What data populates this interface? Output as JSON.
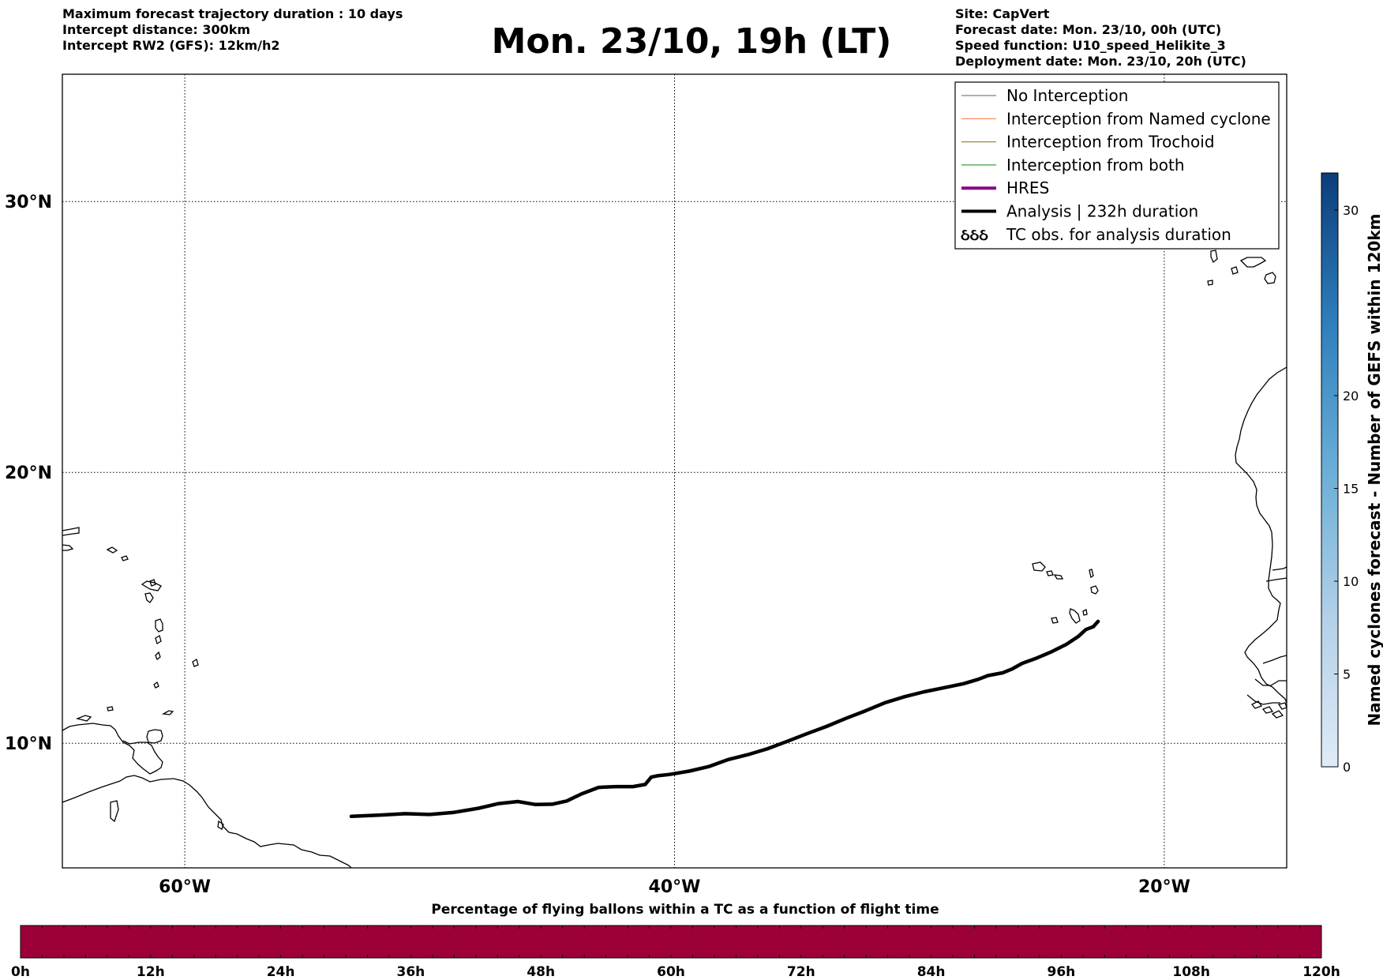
{
  "header": {
    "left_lines": [
      "Maximum forecast trajectory duration : 10 days",
      "Intercept distance: 300km",
      "Intercept RW2 (GFS):  12km/h2"
    ],
    "title": "Mon. 23/10, 19h (LT)",
    "right_lines": [
      "Site: CapVert",
      "Forecast date: Mon. 23/10, 00h (UTC)",
      "Speed function: U10_speed_Helikite_3",
      "Deployment date: Mon. 23/10, 20h (UTC)"
    ]
  },
  "map": {
    "lon_range": [
      -65,
      -15
    ],
    "lat_range": [
      5.4,
      34.7
    ],
    "lon_ticks": [
      {
        "value": -60,
        "label": "60°W"
      },
      {
        "value": -40,
        "label": "40°W"
      },
      {
        "value": -20,
        "label": "20°W"
      }
    ],
    "lat_ticks": [
      {
        "value": 10,
        "label": "10°N"
      },
      {
        "value": 20,
        "label": "20°N"
      },
      {
        "value": 30,
        "label": "30°N"
      }
    ],
    "grid": true,
    "analysis_track": {
      "color": "#000000",
      "points": [
        [
          -53.2,
          7.3
        ],
        [
          -52.0,
          7.35
        ],
        [
          -51.0,
          7.4
        ],
        [
          -50.0,
          7.37
        ],
        [
          -49.0,
          7.45
        ],
        [
          -48.0,
          7.6
        ],
        [
          -47.2,
          7.77
        ],
        [
          -46.4,
          7.85
        ],
        [
          -45.7,
          7.74
        ],
        [
          -45.0,
          7.75
        ],
        [
          -44.4,
          7.87
        ],
        [
          -43.8,
          8.13
        ],
        [
          -43.1,
          8.37
        ],
        [
          -42.4,
          8.4
        ],
        [
          -41.7,
          8.4
        ],
        [
          -41.2,
          8.48
        ],
        [
          -40.95,
          8.75
        ],
        [
          -40.7,
          8.8
        ],
        [
          -40.2,
          8.85
        ],
        [
          -39.4,
          8.97
        ],
        [
          -38.6,
          9.14
        ],
        [
          -37.8,
          9.4
        ],
        [
          -37.0,
          9.58
        ],
        [
          -36.2,
          9.8
        ],
        [
          -35.4,
          10.07
        ],
        [
          -34.6,
          10.35
        ],
        [
          -33.8,
          10.62
        ],
        [
          -33.0,
          10.92
        ],
        [
          -32.2,
          11.2
        ],
        [
          -31.4,
          11.5
        ],
        [
          -30.6,
          11.72
        ],
        [
          -29.8,
          11.9
        ],
        [
          -29.0,
          12.05
        ],
        [
          -28.2,
          12.2
        ],
        [
          -27.6,
          12.36
        ],
        [
          -27.2,
          12.5
        ],
        [
          -26.6,
          12.6
        ],
        [
          -26.2,
          12.75
        ],
        [
          -25.8,
          12.95
        ],
        [
          -25.2,
          13.15
        ],
        [
          -24.6,
          13.38
        ],
        [
          -24.0,
          13.65
        ],
        [
          -23.5,
          13.95
        ],
        [
          -23.2,
          14.2
        ],
        [
          -22.9,
          14.3
        ],
        [
          -22.7,
          14.5
        ]
      ]
    },
    "coastline_color": "#000000"
  },
  "legend": {
    "items": [
      {
        "label": "No Interception",
        "color": "#808080",
        "width": 1.2,
        "kind": "line"
      },
      {
        "label": "Interception from Named cyclone",
        "color": "#ff7f50",
        "width": 1.2,
        "kind": "line"
      },
      {
        "label": "Interception from Trochoid",
        "color": "#9b8a3c",
        "width": 1.2,
        "kind": "line"
      },
      {
        "label": "Interception from both",
        "color": "#3aa13a",
        "width": 1.2,
        "kind": "line"
      },
      {
        "label": "HRES",
        "color": "#8b008b",
        "width": 4,
        "kind": "line"
      },
      {
        "label": "Analysis | 232h duration",
        "color": "#000000",
        "width": 4,
        "kind": "line"
      },
      {
        "label": "TC obs. for analysis duration",
        "color": "#000000",
        "kind": "cyclone-symbols",
        "symbol": "ઠઠઠ"
      }
    ]
  },
  "colorbar_right": {
    "label": "Named cyclones forecast - Number of GEFS within 120km",
    "min": 0,
    "max": 32,
    "ticks": [
      0,
      5,
      10,
      15,
      20,
      30
    ],
    "colormap": "Blues"
  },
  "colorbar_bottom": {
    "title": "Percentage of flying ballons within a TC as a function of flight time",
    "fill_color": "#9d0039",
    "ticks": [
      "0h",
      "12h",
      "24h",
      "36h",
      "48h",
      "60h",
      "72h",
      "84h",
      "96h",
      "108h",
      "120h"
    ],
    "minor_divisions": 60
  }
}
